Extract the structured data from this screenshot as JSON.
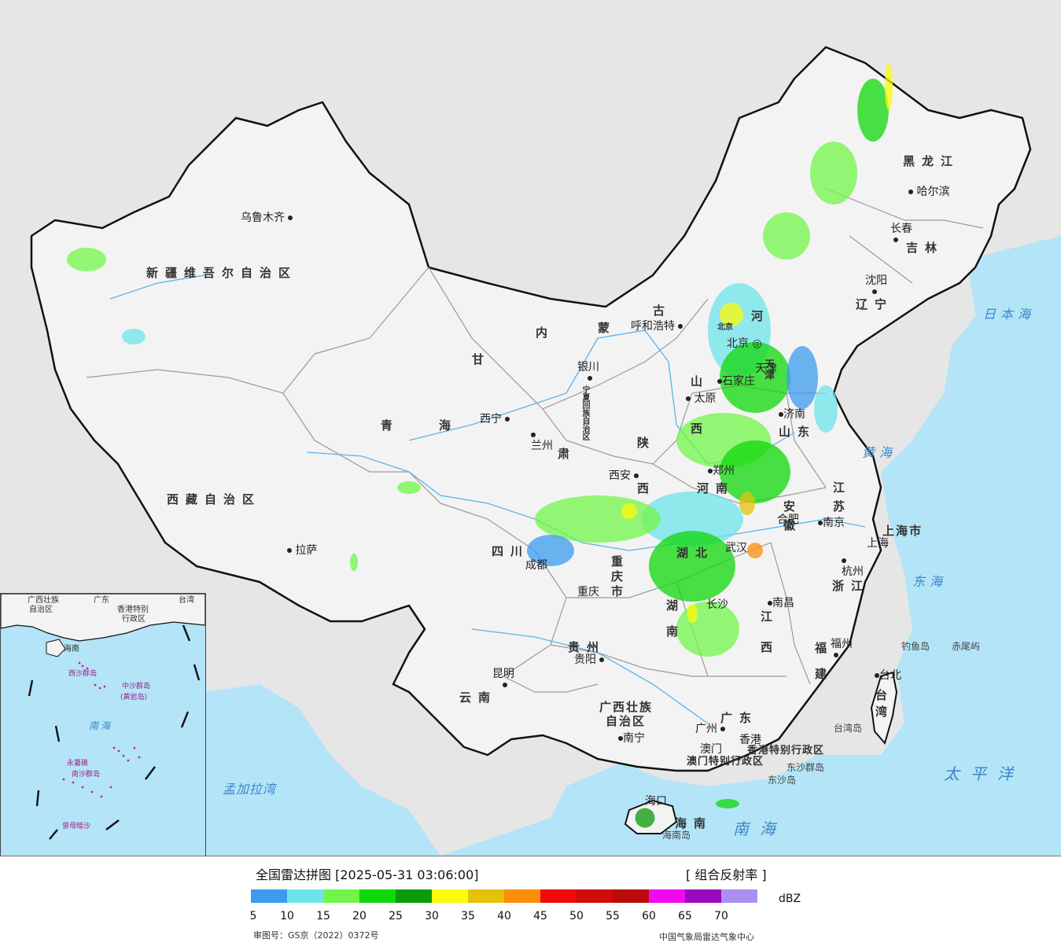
{
  "title": "全国雷达拼图 [2025-05-31 03:06:00]",
  "product": "[ 组合反射率 ]",
  "unit": "dBZ",
  "review_number": "审图号：GS京（2022）0372号",
  "issuer": "中国气象局雷达气象中心",
  "legend": {
    "ticks": [
      "5",
      "10",
      "15",
      "20",
      "25",
      "30",
      "35",
      "40",
      "45",
      "50",
      "55",
      "60",
      "65",
      "70"
    ],
    "colors": [
      "#3c9bef",
      "#6ee4ea",
      "#71f54a",
      "#0fd80a",
      "#0a9a0a",
      "#fbfb0a",
      "#e5c10a",
      "#fb8f0a",
      "#f00a0a",
      "#d20a0a",
      "#bc0a0a",
      "#f00af0",
      "#9a0abc",
      "#ac8ff0"
    ]
  },
  "colors": {
    "sea": "#b3e4f7",
    "land_china": "#f3f3f3",
    "land_foreign": "#e6e6e6",
    "border": "#111111",
    "province_border": "#9a9a9a",
    "river": "#58b4ea"
  },
  "provinces": {
    "xinjiang": "新疆维吾尔自治区",
    "xizang": "西藏自治区",
    "qinghai_1": "青",
    "qinghai_2": "海",
    "gansu": "甘",
    "neimenggu_1": "内",
    "neimenggu_2": "蒙",
    "neimenggu_3": "古",
    "ningxia": "宁夏回族自治区",
    "heilongjiang": "黑龙江",
    "jilin": "吉林",
    "liaoning": "辽宁",
    "hebei": "河",
    "shanxi": "山",
    "shanxi_2": "西",
    "shaanxi": "陕",
    "shaanxi_2": "西",
    "shandong": "山东",
    "henan": "河南",
    "jiangsu": "江苏",
    "anhui": "安徽",
    "shanghai": "上海市",
    "zhejiang": "浙江",
    "jiangxi": "江西",
    "fujian": "福建",
    "hubei": "湖北",
    "hunan": "湖南",
    "sichuan": "四川",
    "chongqing": "重庆市",
    "guizhou": "贵州",
    "yunnan": "云南",
    "guangxi_1": "广西壮族",
    "guangxi_2": "自治区",
    "guangdong": "广东",
    "hainan": "海南",
    "taiwan": "台湾",
    "gansu_2": "肃",
    "tianjin": "天津",
    "beijing": "北京",
    "hk": "香港特别行政区",
    "macao": "澳门特别行政区"
  },
  "cities": {
    "urumqi": "乌鲁木齐",
    "lhasa": "拉萨",
    "xining": "西宁",
    "lanzhou": "兰州",
    "yinchuan": "银川",
    "hohhot": "呼和浩特",
    "harbin": "哈尔滨",
    "changchun": "长春",
    "shenyang": "沈阳",
    "beijing": "北京",
    "tianjin": "天津",
    "shijiazhuang": "石家庄",
    "taiyuan": "太原",
    "jinan": "济南",
    "zhengzhou": "郑州",
    "xian": "西安",
    "chengdu": "成都",
    "chongqing": "重庆",
    "wuhan": "武汉",
    "hefei": "合肥",
    "nanjing": "南京",
    "shanghai": "上海",
    "hangzhou": "杭州",
    "nanchang": "南昌",
    "changsha": "长沙",
    "guiyang": "贵阳",
    "kunming": "昆明",
    "nanning": "南宁",
    "guangzhou": "广州",
    "hongkong": "香港",
    "macau": "澳门",
    "fuzhou": "福州",
    "taipei": "台北",
    "haikou": "海口"
  },
  "seas": {
    "japan_sea": "日本海",
    "yellow_sea": "黄海",
    "east_sea": "东海",
    "pacific": "太平洋",
    "south_sea": "南海",
    "bengal": "孟加拉湾"
  },
  "islands": {
    "diaoyu": "钓鱼岛",
    "chiwei": "赤尾屿",
    "taiwan_island": "台湾岛",
    "dongsha": "东沙群岛",
    "dongsha_2": "东沙岛",
    "hainan_island": "海南岛"
  },
  "inset": {
    "guangxi": "广西壮族",
    "guangxi_2": "自治区",
    "guangdong": "广东",
    "taiwan": "台湾",
    "hk": "香港特别",
    "hk_2": "行政区",
    "hainan": "海南",
    "south_sea": "南海",
    "xisha": "西沙群岛",
    "zhongsha": "中沙群岛",
    "huangyan": "(黄岩岛)",
    "nansha": "南沙群岛",
    "yongshu": "永暑礁",
    "zengmu": "曾母暗沙"
  }
}
